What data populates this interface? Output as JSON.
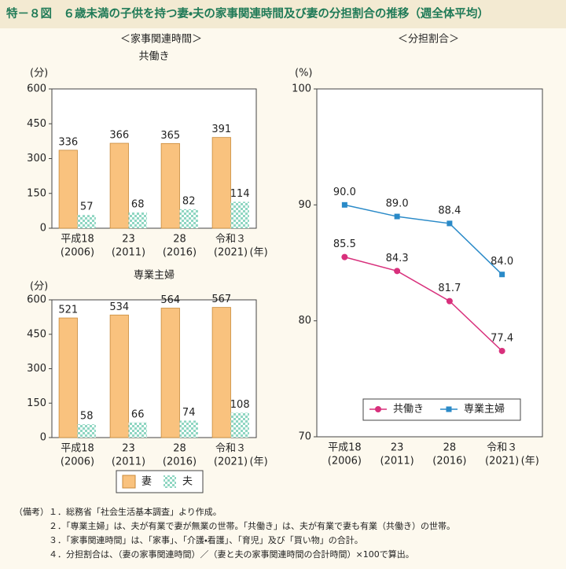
{
  "title": "特－８図　６歳未満の子供を持つ妻・夫の家事関連時間及び妻の分担割合の推移（週全体平均）",
  "chart_data": [
    {
      "type": "bar",
      "section_title": "＜家事関連時間＞",
      "title": "共働き",
      "y_unit": "(分)",
      "x_unit": "(年)",
      "categories": [
        [
          "平成18",
          "(2006)"
        ],
        [
          "23",
          "(2011)"
        ],
        [
          "28",
          "(2016)"
        ],
        [
          "令和３",
          "(2021)"
        ]
      ],
      "series": [
        {
          "name": "妻",
          "color": "#f9c27e",
          "values": [
            336,
            366,
            365,
            391
          ]
        },
        {
          "name": "夫",
          "color": "#8fd6c2",
          "pattern": "check",
          "values": [
            57,
            68,
            82,
            114
          ]
        }
      ],
      "ylim": [
        0,
        600
      ],
      "yticks": [
        0,
        150,
        300,
        450,
        600
      ],
      "legend": "below"
    },
    {
      "type": "bar",
      "title": "専業主婦",
      "y_unit": "(分)",
      "x_unit": "(年)",
      "categories": [
        [
          "平成18",
          "(2006)"
        ],
        [
          "23",
          "(2011)"
        ],
        [
          "28",
          "(2016)"
        ],
        [
          "令和３",
          "(2021)"
        ]
      ],
      "series": [
        {
          "color": "#f9c27e",
          "values": [
            521,
            534,
            564,
            567
          ]
        },
        {
          "color": "#8fd6c2",
          "pattern": "check",
          "values": [
            58,
            66,
            74,
            108
          ]
        }
      ],
      "ylim": [
        0,
        600
      ],
      "yticks": [
        0,
        150,
        300,
        450,
        600
      ]
    },
    {
      "type": "line",
      "section_title": "＜分担割合＞",
      "y_unit": "(%)",
      "x_unit": "(年)",
      "categories": [
        [
          "平成18",
          "(2006)"
        ],
        [
          "23",
          "(2011)"
        ],
        [
          "28",
          "(2016)"
        ],
        [
          "令和３",
          "(2021)"
        ]
      ],
      "series": [
        {
          "name": "共働き",
          "color": "#d8307c",
          "marker": "circle",
          "values": [
            85.5,
            84.3,
            81.7,
            77.4
          ],
          "value_labels": [
            "85.5",
            "84.3",
            "81.7",
            "77.4"
          ]
        },
        {
          "name": "専業主婦",
          "color": "#2a8ac8",
          "marker": "square",
          "values": [
            90.0,
            89.0,
            88.4,
            84.0
          ],
          "value_labels": [
            "90.0",
            "89.0",
            "88.4",
            "84.0"
          ]
        }
      ],
      "ylim": [
        70,
        100
      ],
      "yticks": [
        70,
        80,
        90,
        100
      ],
      "legend": "lower right"
    }
  ],
  "notes_label": "（備考）",
  "notes": [
    "１．総務省「社会生活基本調査」より作成。",
    "２．「専業主婦」は、夫が有業で妻が無業の世帯。「共働き」は、夫が有業で妻も有業（共働き）の世帯。",
    "３．「家事関連時間」は、「家事」、「介護・看護」、「育児」及び「買い物」の合計。",
    "４．分担割合は、（妻の家事関連時間）／（妻と夫の家事関連時間の合計時間）×100で算出。"
  ]
}
